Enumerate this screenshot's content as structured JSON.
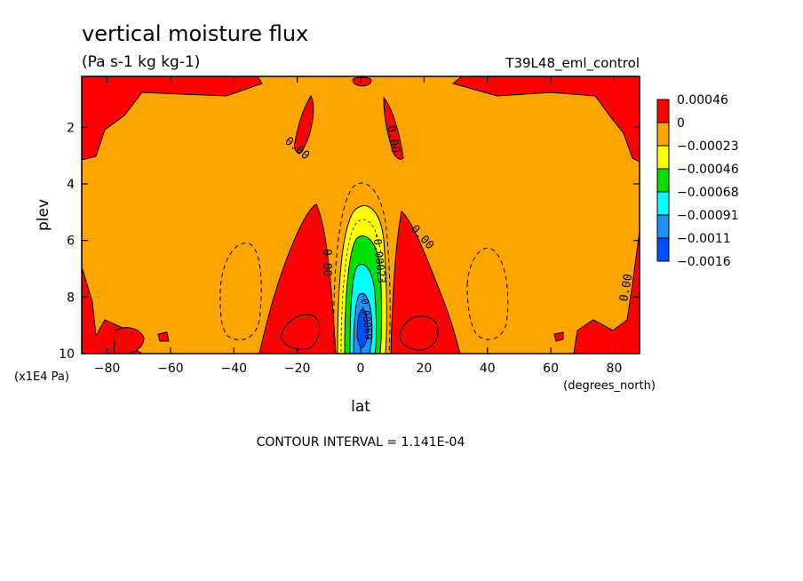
{
  "chart_data": {
    "type": "heatmap",
    "title": "vertical moisture flux",
    "subtitle": "(Pa s-1 kg kg-1)",
    "experiment": "T39L48_eml_control",
    "xlabel": "lat",
    "xunits": "(degrees_north)",
    "ylabel": "plev",
    "yunits": "(x1E4 Pa)",
    "xlim": [
      -88,
      88
    ],
    "ylim": [
      10,
      0.2
    ],
    "x_ticks": [
      -80,
      -60,
      -40,
      -20,
      0,
      20,
      40,
      60,
      80
    ],
    "x_tick_labels": [
      "−80",
      "−60",
      "−40",
      "−20",
      "0",
      "20",
      "40",
      "60",
      "80"
    ],
    "y_ticks": [
      2,
      4,
      6,
      8,
      10
    ],
    "y_tick_labels": [
      "2",
      "4",
      "6",
      "8",
      "10"
    ],
    "contour_interval_text": "CONTOUR INTERVAL = 1.141E-04",
    "contour_labels": [
      "0.00",
      "0.00",
      "0.00",
      "0.00",
      "0.00",
      "-0.00023",
      "-0.00069"
    ],
    "colorbar": {
      "labels": [
        "0.00046",
        "0",
        "−0.00023",
        "−0.00046",
        "−0.00068",
        "−0.00091",
        "−0.0011",
        "−0.0016"
      ],
      "colors": [
        "#ff0000",
        "#ffa500",
        "#ffff00",
        "#00e000",
        "#00ffff",
        "#1e90ff",
        "#0050ff"
      ]
    },
    "grid": false,
    "legend_position": "right"
  }
}
